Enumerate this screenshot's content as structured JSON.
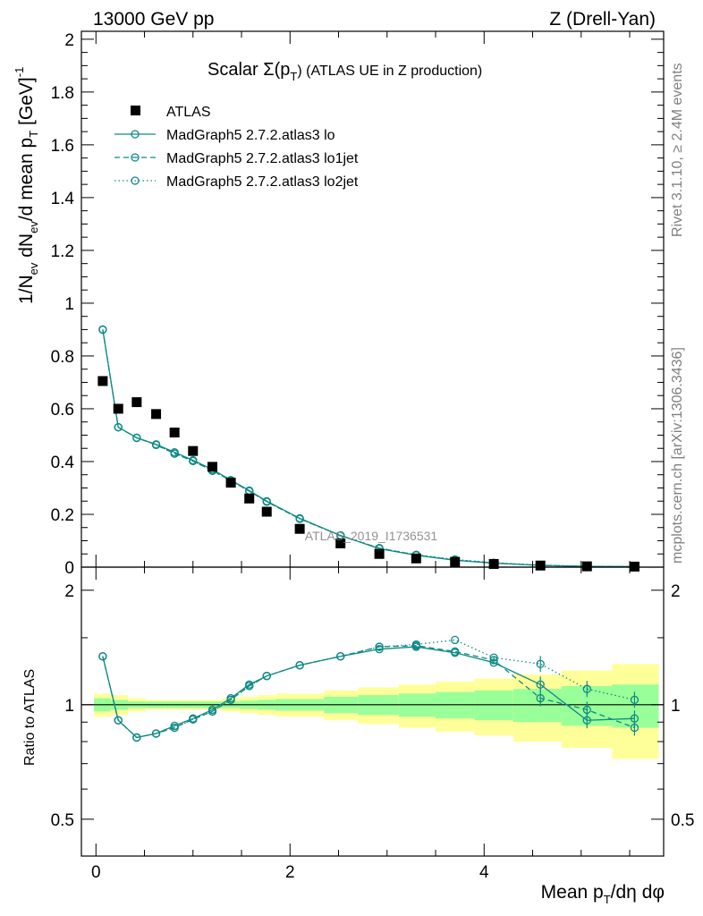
{
  "header": {
    "left": "13000 GeV pp",
    "right": "Z (Drell-Yan)"
  },
  "side": {
    "rivet": "Rivet 3.1.10, ≥ 2.4M events",
    "mcplots": "mcplots.cern.ch [arXiv:1306.3436]"
  },
  "watermark": "ATLAS_2019_I1736531",
  "colors": {
    "mc": "#0e8a84",
    "data": "#000000",
    "band_inner": "#99ff99",
    "band_outer": "#ffff99"
  },
  "chart_data": [
    {
      "type": "scatter",
      "title": "Scalar Σ(pT) (ATLAS UE in Z production)",
      "title_main": "Scalar Σ(p",
      "title_sub": "T",
      "title_rest": ") (ATLAS UE in Z production)",
      "ylabel": "1/N_ev dN_ev/d mean p_T [GeV]^-1",
      "ylabel_parts": [
        "1/N",
        "ev",
        " dN",
        "ev",
        "/d mean p",
        "T",
        " [GeV]",
        "-1"
      ],
      "ylim": [
        0,
        2.03
      ],
      "yticks": [
        0,
        0.2,
        0.4,
        0.6,
        0.8,
        1,
        1.2,
        1.4,
        1.6,
        1.8,
        2
      ],
      "yticklabels": [
        "0",
        "0.2",
        "0.4",
        "0.6",
        "0.8",
        "1",
        "1.2",
        "1.4",
        "1.6",
        "1.8",
        "2"
      ],
      "xlim": [
        -0.15,
        5.85
      ],
      "x": [
        0.07,
        0.23,
        0.42,
        0.62,
        0.81,
        1.0,
        1.2,
        1.39,
        1.58,
        1.76,
        2.1,
        2.52,
        2.92,
        3.3,
        3.7,
        4.1,
        4.58,
        5.06,
        5.55
      ],
      "series": [
        {
          "name": "ATLAS",
          "marker": "square",
          "values": [
            0.705,
            0.6,
            0.625,
            0.58,
            0.51,
            0.44,
            0.38,
            0.32,
            0.26,
            0.21,
            0.145,
            0.09,
            0.05,
            0.033,
            0.02,
            0.012,
            0.006,
            0.003,
            0.002
          ]
        },
        {
          "name": "MadGraph5 2.7.2.atlas3 lo",
          "line": "solid",
          "values": [
            0.9,
            0.53,
            0.49,
            0.465,
            0.435,
            0.405,
            0.37,
            0.33,
            0.29,
            0.25,
            0.185,
            0.12,
            0.07,
            0.045,
            0.026,
            0.015,
            0.0068,
            0.0028,
            0.0019
          ]
        },
        {
          "name": "MadGraph5 2.7.2.atlas3 lo1jet",
          "line": "dashed",
          "values": [
            0.9,
            0.53,
            0.49,
            0.463,
            0.43,
            0.402,
            0.365,
            0.328,
            0.288,
            0.248,
            0.183,
            0.12,
            0.072,
            0.046,
            0.027,
            0.016,
            0.0063,
            0.0029,
            0.0018
          ]
        },
        {
          "name": "MadGraph5 2.7.2.atlas3 lo2jet",
          "line": "dotted",
          "values": [
            0.9,
            0.53,
            0.49,
            0.463,
            0.43,
            0.402,
            0.365,
            0.328,
            0.288,
            0.248,
            0.183,
            0.12,
            0.072,
            0.047,
            0.029,
            0.0165,
            0.0079,
            0.0033,
            0.0021
          ]
        }
      ]
    },
    {
      "type": "line",
      "ylabel": "Ratio to ATLAS",
      "xlabel": "Mean p_T/dη dφ",
      "xlabel_parts": [
        "Mean p",
        "T",
        "/dη dφ"
      ],
      "ylim": [
        0.4,
        2.3
      ],
      "yscale": "log",
      "yticks": [
        0.5,
        1,
        2
      ],
      "yticklabels": [
        "0.5",
        "1",
        "2"
      ],
      "xlim": [
        -0.15,
        5.85
      ],
      "xticks": [
        0,
        2,
        4
      ],
      "xticklabels": [
        "0",
        "2",
        "4"
      ],
      "bin_edges": [
        -0.02,
        0.15,
        0.33,
        0.52,
        0.71,
        0.9,
        1.1,
        1.3,
        1.48,
        1.67,
        1.85,
        2.35,
        2.7,
        3.12,
        3.5,
        3.9,
        4.3,
        4.8,
        5.32,
        5.8
      ],
      "band_inner": [
        0.04,
        0.03,
        0.02,
        0.02,
        0.02,
        0.02,
        0.02,
        0.02,
        0.025,
        0.03,
        0.035,
        0.05,
        0.06,
        0.07,
        0.08,
        0.09,
        0.1,
        0.12,
        0.13
      ],
      "band_outer": [
        0.07,
        0.06,
        0.04,
        0.03,
        0.03,
        0.03,
        0.03,
        0.04,
        0.05,
        0.06,
        0.07,
        0.09,
        0.11,
        0.13,
        0.15,
        0.17,
        0.2,
        0.23,
        0.28
      ],
      "x": [
        0.07,
        0.23,
        0.42,
        0.62,
        0.81,
        1.0,
        1.2,
        1.39,
        1.58,
        1.76,
        2.1,
        2.52,
        2.92,
        3.3,
        3.7,
        4.1,
        4.58,
        5.06,
        5.55
      ],
      "series": [
        {
          "name": "MadGraph5 2.7.2.atlas3 lo",
          "line": "solid",
          "values": [
            1.34,
            0.91,
            0.82,
            0.84,
            0.88,
            0.92,
            0.97,
            1.04,
            1.13,
            1.19,
            1.27,
            1.34,
            1.4,
            1.42,
            1.37,
            1.29,
            1.13,
            0.91,
            0.92
          ]
        },
        {
          "name": "MadGraph5 2.7.2.atlas3 lo1jet",
          "line": "dashed",
          "values": [
            1.34,
            0.91,
            0.82,
            0.84,
            0.87,
            0.915,
            0.96,
            1.03,
            1.12,
            1.19,
            1.27,
            1.34,
            1.42,
            1.43,
            1.38,
            1.31,
            1.04,
            0.97,
            0.87
          ]
        },
        {
          "name": "MadGraph5 2.7.2.atlas3 lo2jet",
          "line": "dotted",
          "values": [
            1.34,
            0.91,
            0.82,
            0.84,
            0.87,
            0.915,
            0.96,
            1.03,
            1.12,
            1.19,
            1.27,
            1.34,
            1.42,
            1.44,
            1.48,
            1.33,
            1.28,
            1.1,
            1.03
          ]
        }
      ]
    }
  ]
}
